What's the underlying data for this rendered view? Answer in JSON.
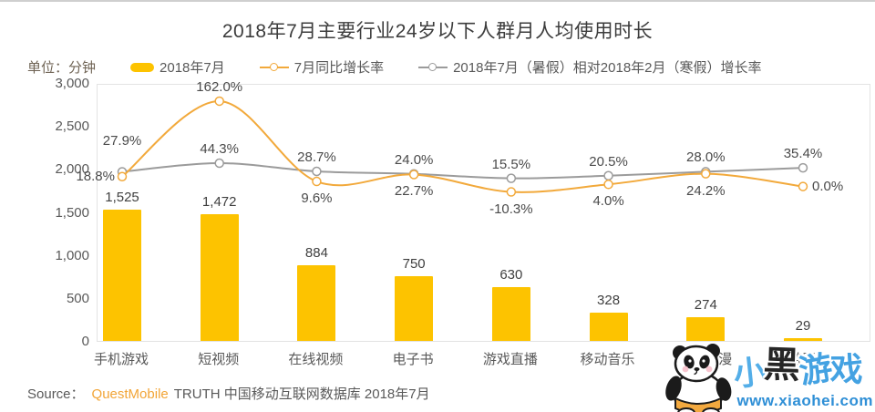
{
  "title": "2018年7月主要行业24岁以下人群月人均使用时长",
  "unit_label": "单位：分钟",
  "legend": {
    "items": [
      {
        "label": "2018年7月",
        "type": "bar",
        "color": "#FDC300"
      },
      {
        "label": "7月同比增长率",
        "type": "line",
        "color": "#F2A93B"
      },
      {
        "label": "2018年7月（暑假）相对2018年2月（寒假）增长率",
        "type": "line",
        "color": "#9B9B9B"
      }
    ]
  },
  "chart_data": {
    "type": "bar+line",
    "title": "2018年7月主要行业24岁以下人群月人均使用时长",
    "unit": "分钟",
    "categories": [
      "手机游戏",
      "短视频",
      "在线视频",
      "电子书",
      "游戏直播",
      "移动音乐",
      "手机动漫",
      "旅游服务"
    ],
    "y_axis_left": {
      "min": 0,
      "max": 3000,
      "tick_step": 500,
      "tick_labels": [
        "3,000",
        "2,500",
        "2,000",
        "1,500",
        "1,000",
        "500",
        "0"
      ]
    },
    "y_axis_right": {
      "visible": false,
      "unit": "%"
    },
    "grid": false,
    "legend_position": "top",
    "series": [
      {
        "name": "2018年7月",
        "type": "bar",
        "axis": "left",
        "color": "#FDC300",
        "values": [
          1525,
          1472,
          884,
          750,
          630,
          328,
          274,
          29
        ],
        "value_labels": [
          "1,525",
          "1,472",
          "884",
          "750",
          "630",
          "328",
          "274",
          "29"
        ]
      },
      {
        "name": "7月同比增长率",
        "type": "line",
        "axis": "right",
        "color": "#F2A93B",
        "values_percent": [
          18.8,
          162.0,
          9.6,
          22.7,
          -10.3,
          4.0,
          24.2,
          0.0
        ],
        "value_labels": [
          "18.8%",
          "162.0%",
          "9.6%",
          "22.7%",
          "-10.3%",
          "4.0%",
          "24.2%",
          "0.0%"
        ],
        "label_placement": [
          "left",
          "above",
          "below",
          "below",
          "below",
          "below",
          "below",
          "right"
        ]
      },
      {
        "name": "2018年7月（暑假）相对2018年2月（寒假）增长率",
        "type": "line",
        "axis": "right",
        "color": "#9B9B9B",
        "values_percent": [
          27.9,
          44.3,
          28.7,
          24.0,
          15.5,
          20.5,
          28.0,
          35.4
        ],
        "value_labels": [
          "27.9%",
          "44.3%",
          "28.7%",
          "24.0%",
          "15.5%",
          "20.5%",
          "28.0%",
          "35.4%"
        ],
        "label_placement": [
          "above-far",
          "above",
          "above",
          "above",
          "above",
          "above",
          "above",
          "above"
        ]
      }
    ]
  },
  "source": {
    "prefix": "Source：",
    "brand": "QuestMobile",
    "rest": "TRUTH 中国移动互联网数据库 2018年7月"
  },
  "watermark": {
    "text": "小黑游戏",
    "char_colors": [
      "#54AEE8",
      "#262626",
      "#44A2E2",
      "#44A2E2"
    ],
    "url": "www.xiaohei.com"
  }
}
